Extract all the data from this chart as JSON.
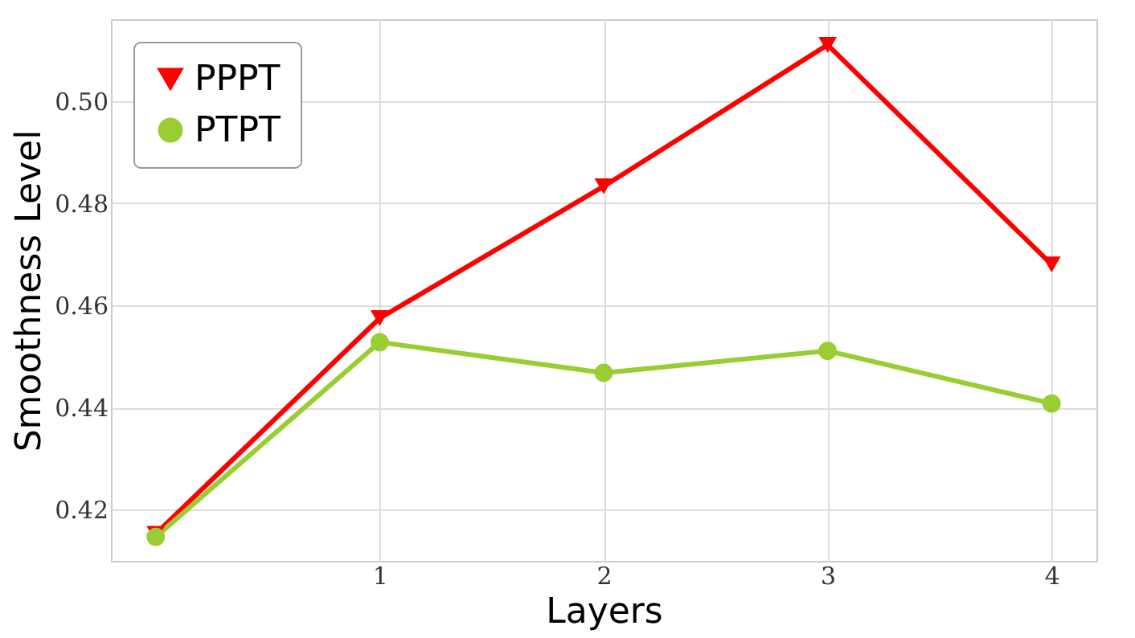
{
  "chart_data": {
    "type": "line",
    "xlabel": "Layers",
    "ylabel": "Smoothness Level",
    "x": [
      0,
      1,
      2,
      3,
      4
    ],
    "series": [
      {
        "name": "PPPT",
        "color": "#ff0000",
        "marker": "triangle",
        "values": [
          0.4153,
          0.4575,
          0.4833,
          0.511,
          0.468
        ]
      },
      {
        "name": "PTPT",
        "color": "#9acd32",
        "marker": "circle",
        "values": [
          0.4147,
          0.4528,
          0.4468,
          0.4511,
          0.4408
        ]
      }
    ],
    "xlim": [
      -0.2,
      4.2
    ],
    "xticks": [
      1,
      2,
      3,
      4
    ],
    "ylim": [
      0.41,
      0.516
    ],
    "yticks": [
      0.42,
      0.44,
      0.46,
      0.48,
      {
        "value": 0.5,
        "label": "0.50"
      }
    ],
    "grid": true,
    "legend": "top left"
  }
}
